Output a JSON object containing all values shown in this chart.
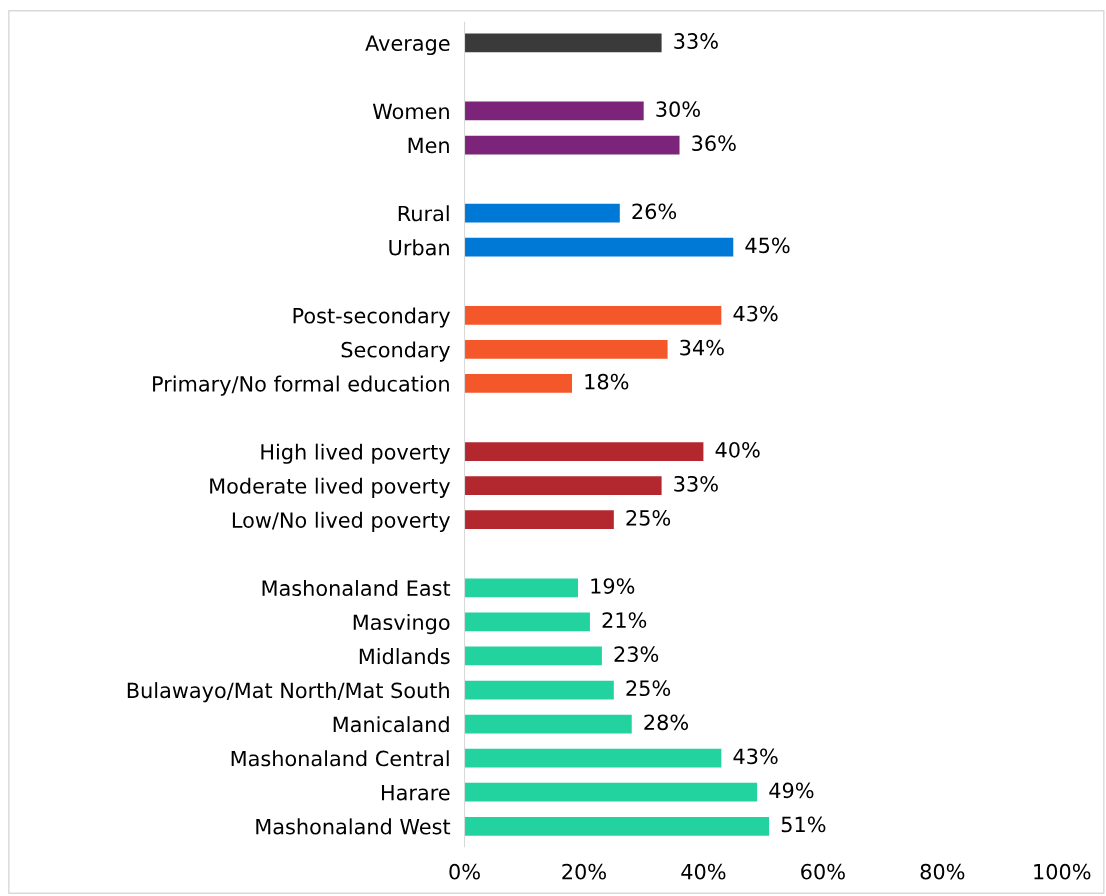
{
  "chart_data": {
    "type": "bar",
    "orientation": "horizontal",
    "categories": [
      "Average",
      null,
      "Women",
      "Men",
      null,
      "Rural",
      "Urban",
      null,
      "Post-secondary",
      "Secondary",
      "Primary/No formal education",
      null,
      "High lived poverty",
      "Moderate lived poverty",
      "Low/No lived poverty",
      null,
      "Mashonaland East",
      "Masvingo",
      "Midlands",
      "Bulawayo/Mat North/Mat South",
      "Manicaland",
      "Mashonaland Central",
      "Harare",
      "Mashonaland West"
    ],
    "values": [
      33,
      null,
      30,
      36,
      null,
      26,
      45,
      null,
      43,
      34,
      18,
      null,
      40,
      33,
      25,
      null,
      19,
      21,
      23,
      25,
      28,
      43,
      49,
      51
    ],
    "colors": [
      "#3a3a3a",
      null,
      "#7b2479",
      "#7b2479",
      null,
      "#0079d6",
      "#0079d6",
      null,
      "#f4572a",
      "#f4572a",
      "#f4572a",
      null,
      "#b2282e",
      "#b2282e",
      "#b2282e",
      null,
      "#22d3a0",
      "#22d3a0",
      "#22d3a0",
      "#22d3a0",
      "#22d3a0",
      "#22d3a0",
      "#22d3a0",
      "#22d3a0"
    ],
    "value_labels": [
      "33%",
      null,
      "30%",
      "36%",
      null,
      "26%",
      "45%",
      null,
      "43%",
      "34%",
      "18%",
      null,
      "40%",
      "33%",
      "25%",
      null,
      "19%",
      "21%",
      "23%",
      "25%",
      "28%",
      "43%",
      "49%",
      "51%"
    ],
    "xlim": [
      0,
      100
    ],
    "xticks": [
      {
        "value": 0,
        "label": "0%"
      },
      {
        "value": 20,
        "label": "20%"
      },
      {
        "value": 40,
        "label": "40%"
      },
      {
        "value": 60,
        "label": "60%"
      },
      {
        "value": 80,
        "label": "80%"
      },
      {
        "value": 100,
        "label": "100%"
      }
    ],
    "grid": false,
    "legend": false
  }
}
